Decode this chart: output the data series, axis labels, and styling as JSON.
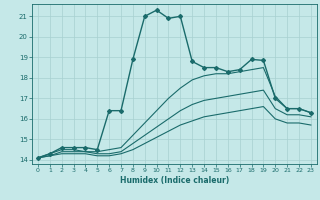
{
  "xlabel": "Humidex (Indice chaleur)",
  "xlim": [
    -0.5,
    23.5
  ],
  "ylim": [
    13.8,
    21.6
  ],
  "yticks": [
    14,
    15,
    16,
    17,
    18,
    19,
    20,
    21
  ],
  "xticks": [
    0,
    1,
    2,
    3,
    4,
    5,
    6,
    7,
    8,
    9,
    10,
    11,
    12,
    13,
    14,
    15,
    16,
    17,
    18,
    19,
    20,
    21,
    22,
    23
  ],
  "bg_color": "#c5e8e8",
  "grid_color": "#a8d0d0",
  "line_color": "#1a6b6b",
  "series": [
    {
      "x": [
        0,
        1,
        2,
        3,
        4,
        5,
        6,
        7,
        8,
        9,
        10,
        11,
        12,
        13,
        14,
        15,
        16,
        17,
        18,
        19,
        20,
        21,
        22,
        23
      ],
      "y": [
        14.1,
        14.3,
        14.6,
        14.6,
        14.6,
        14.5,
        16.4,
        16.4,
        18.9,
        21.0,
        21.3,
        20.9,
        21.0,
        18.8,
        18.5,
        18.5,
        18.3,
        18.4,
        18.9,
        18.85,
        17.0,
        16.5,
        16.5,
        16.3
      ],
      "marker": "D",
      "markersize": 2.0,
      "linewidth": 1.0,
      "zorder": 3
    },
    {
      "x": [
        0,
        1,
        2,
        3,
        4,
        5,
        6,
        7,
        8,
        9,
        10,
        11,
        12,
        13,
        14,
        15,
        16,
        17,
        18,
        19,
        20,
        21,
        22,
        23
      ],
      "y": [
        14.1,
        14.3,
        14.5,
        14.5,
        14.4,
        14.4,
        14.5,
        14.6,
        15.2,
        15.8,
        16.4,
        17.0,
        17.5,
        17.9,
        18.1,
        18.2,
        18.2,
        18.3,
        18.4,
        18.5,
        17.1,
        16.5,
        16.5,
        16.3
      ],
      "marker": null,
      "markersize": 0,
      "linewidth": 0.8,
      "zorder": 2
    },
    {
      "x": [
        0,
        1,
        2,
        3,
        4,
        5,
        6,
        7,
        8,
        9,
        10,
        11,
        12,
        13,
        14,
        15,
        16,
        17,
        18,
        19,
        20,
        21,
        22,
        23
      ],
      "y": [
        14.1,
        14.2,
        14.4,
        14.4,
        14.4,
        14.3,
        14.3,
        14.4,
        14.8,
        15.2,
        15.6,
        16.0,
        16.4,
        16.7,
        16.9,
        17.0,
        17.1,
        17.2,
        17.3,
        17.4,
        16.5,
        16.2,
        16.2,
        16.1
      ],
      "marker": null,
      "markersize": 0,
      "linewidth": 0.8,
      "zorder": 2
    },
    {
      "x": [
        0,
        1,
        2,
        3,
        4,
        5,
        6,
        7,
        8,
        9,
        10,
        11,
        12,
        13,
        14,
        15,
        16,
        17,
        18,
        19,
        20,
        21,
        22,
        23
      ],
      "y": [
        14.1,
        14.2,
        14.3,
        14.3,
        14.3,
        14.2,
        14.2,
        14.3,
        14.5,
        14.8,
        15.1,
        15.4,
        15.7,
        15.9,
        16.1,
        16.2,
        16.3,
        16.4,
        16.5,
        16.6,
        16.0,
        15.8,
        15.8,
        15.7
      ],
      "marker": null,
      "markersize": 0,
      "linewidth": 0.8,
      "zorder": 2
    }
  ]
}
